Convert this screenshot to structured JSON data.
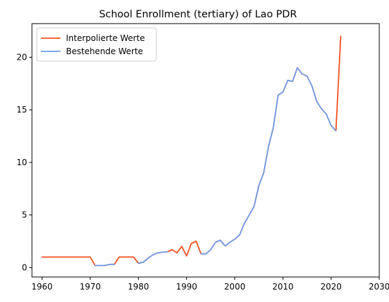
{
  "chart_data": {
    "type": "line",
    "title": "School Enrollment (tertiary) of Lao PDR",
    "xlabel": "",
    "ylabel": "",
    "xlim": [
      1957.9,
      2030
    ],
    "ylim": [
      -0.9,
      23.2
    ],
    "xticks": [
      1960,
      1970,
      1980,
      1990,
      2000,
      2010,
      2020,
      2030
    ],
    "yticks": [
      0,
      5,
      10,
      15,
      20
    ],
    "grid": false,
    "legend_position": "top-left",
    "series": [
      {
        "name": "Interpolierte Werte",
        "color": "#f4511e",
        "x": [
          1960,
          1961,
          1962,
          1963,
          1964,
          1965,
          1966,
          1967,
          1968,
          1969,
          1970,
          1971,
          1972,
          1973,
          1974,
          1975,
          1976,
          1977,
          1978,
          1979,
          1980,
          1981,
          1982,
          1983,
          1984,
          1985,
          1986,
          1987,
          1988,
          1989,
          1990,
          1991,
          1992,
          1993,
          1994,
          1995,
          1996,
          1997,
          1998,
          1999,
          2000,
          2001,
          2002,
          2003,
          2004,
          2005,
          2006,
          2007,
          2008,
          2009,
          2010,
          2011,
          2012,
          2013,
          2014,
          2015,
          2016,
          2017,
          2018,
          2019,
          2020,
          2021,
          2022
        ],
        "y": [
          1.0,
          1.0,
          1.0,
          1.0,
          1.0,
          1.0,
          1.0,
          1.0,
          1.0,
          1.0,
          1.0,
          0.2,
          0.2,
          0.2,
          0.3,
          0.3,
          1.0,
          1.0,
          1.0,
          1.0,
          0.4,
          0.5,
          0.9,
          1.2,
          1.4,
          1.45,
          1.5,
          1.7,
          1.4,
          2.0,
          1.1,
          2.3,
          2.5,
          1.3,
          1.3,
          1.7,
          2.4,
          2.6,
          2.05,
          2.4,
          2.7,
          3.1,
          4.2,
          5.0,
          5.8,
          7.8,
          9.0,
          11.5,
          13.3,
          16.4,
          16.7,
          17.8,
          17.7,
          19.0,
          18.4,
          18.2,
          17.3,
          15.8,
          15.1,
          14.6,
          13.5,
          13.0,
          22.0
        ]
      },
      {
        "name": "Bestehende Werte",
        "color": "#6d9eeb",
        "x": [
          1971,
          1972,
          1973,
          1974,
          1975,
          null,
          1980,
          1981,
          1982,
          1983,
          1984,
          1985,
          1986,
          null,
          1993,
          1994,
          1995,
          1996,
          1997,
          1998,
          1999,
          2000,
          2001,
          2002,
          2003,
          2004,
          2005,
          2006,
          2007,
          2008,
          2009,
          2010,
          2011,
          2012,
          2013,
          2014,
          2015,
          2016,
          2017,
          2018,
          2019,
          2020,
          2021
        ],
        "y": [
          0.2,
          0.2,
          0.2,
          0.3,
          0.3,
          null,
          0.4,
          0.5,
          0.9,
          1.2,
          1.4,
          1.45,
          1.5,
          null,
          1.3,
          1.3,
          1.7,
          2.4,
          2.6,
          2.05,
          2.4,
          2.7,
          3.1,
          4.2,
          5.0,
          5.8,
          7.8,
          9.0,
          11.5,
          13.3,
          16.4,
          16.7,
          17.8,
          17.7,
          19.0,
          18.4,
          18.2,
          17.3,
          15.8,
          15.1,
          14.6,
          13.5,
          13.0
        ]
      }
    ]
  }
}
